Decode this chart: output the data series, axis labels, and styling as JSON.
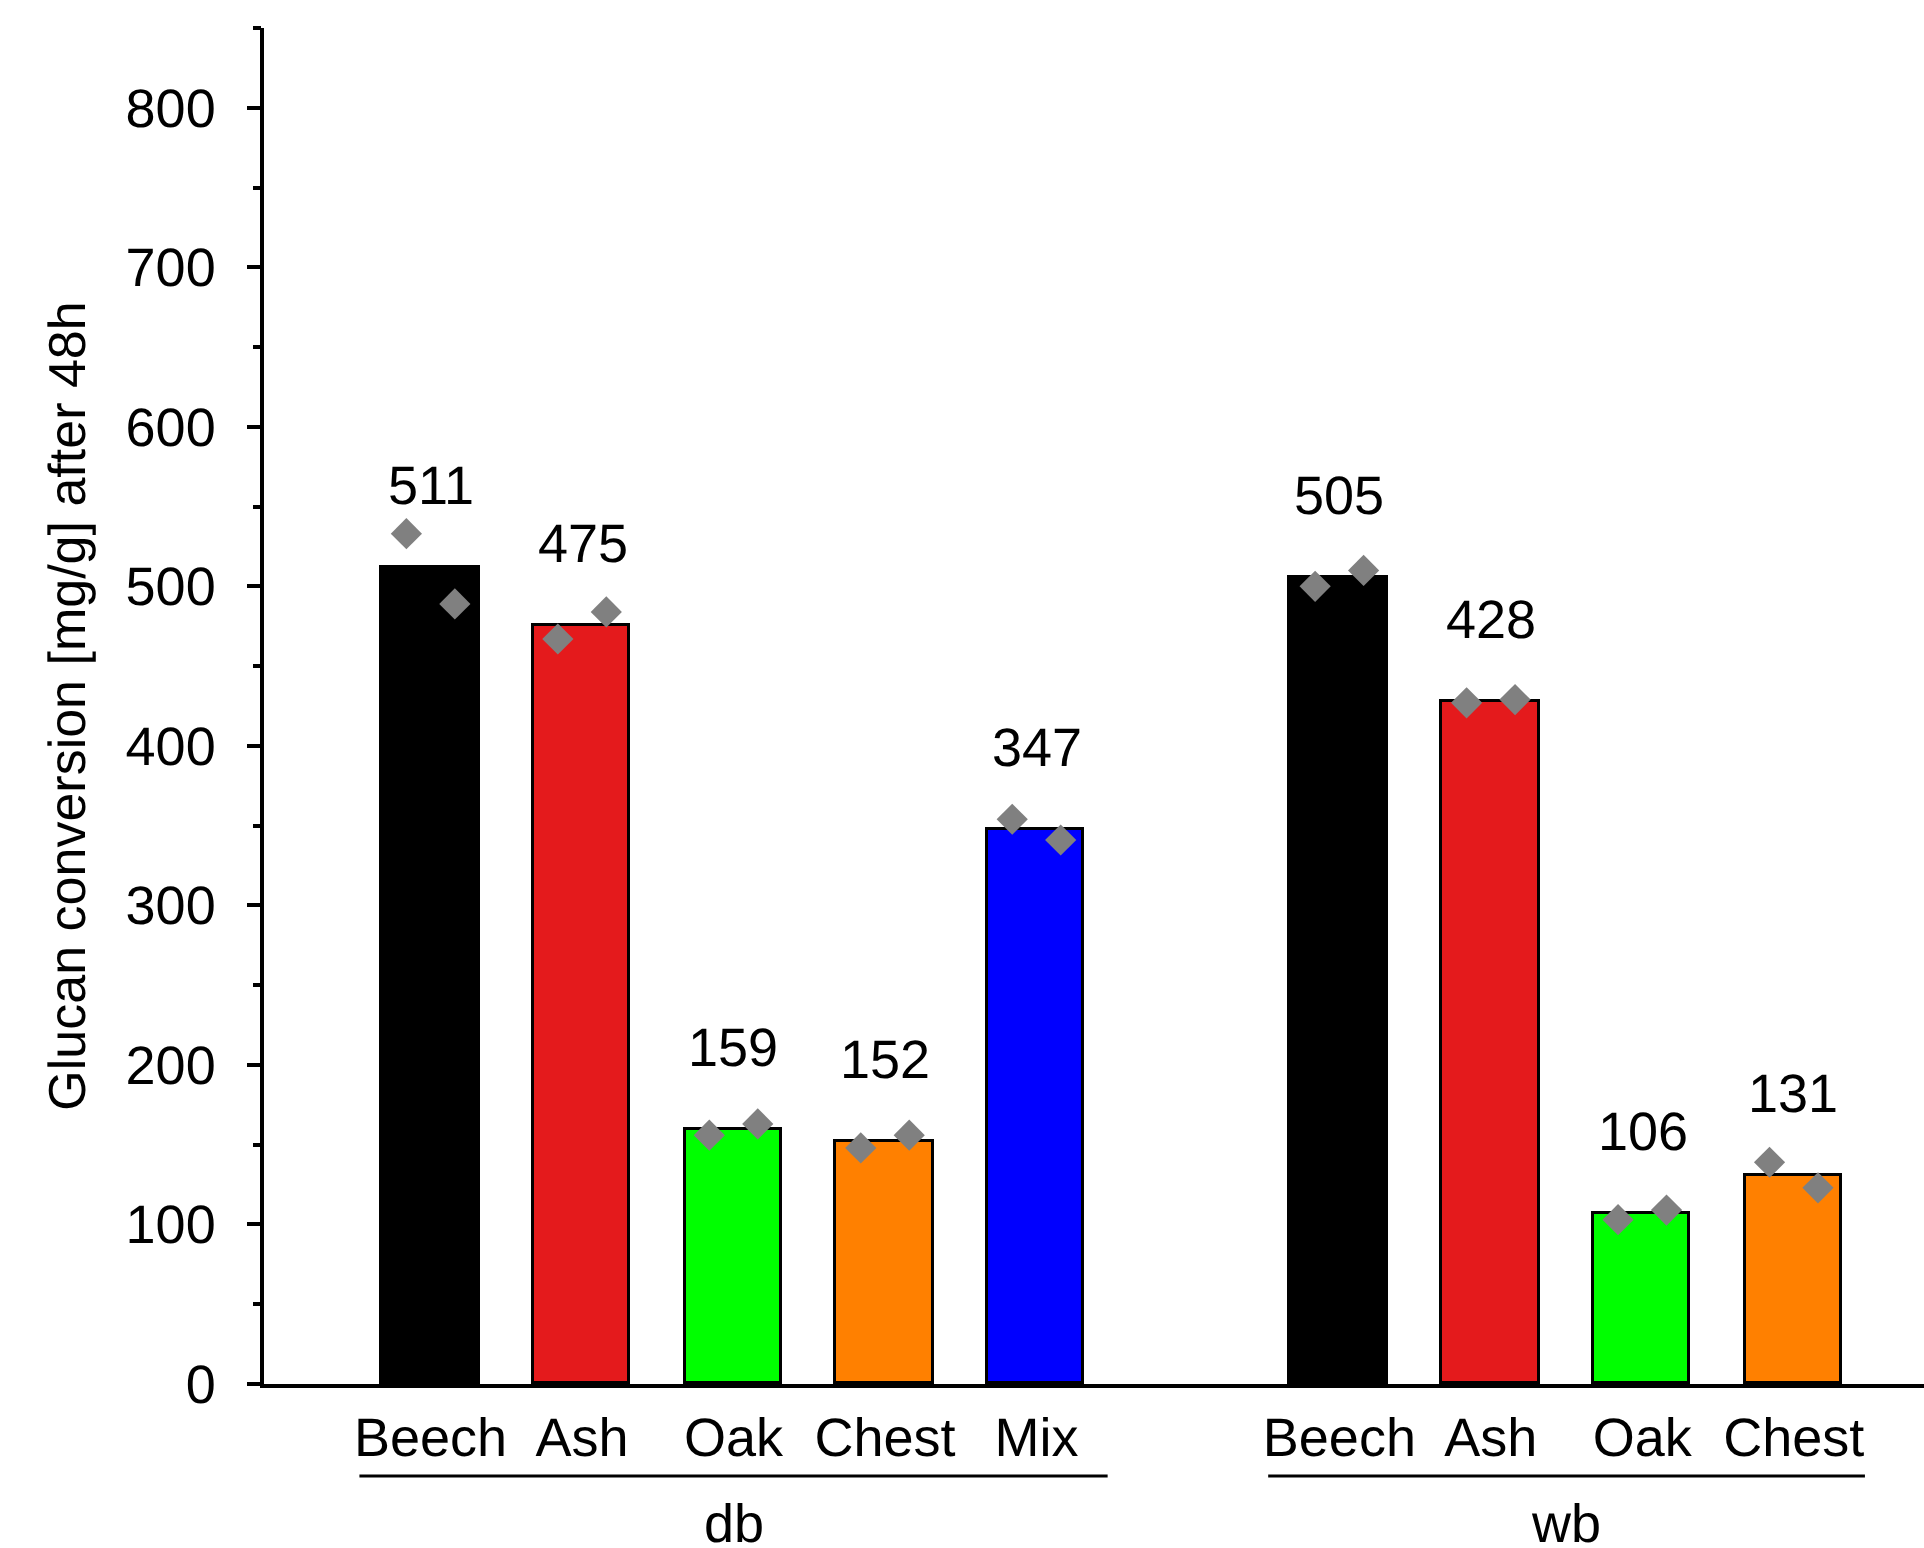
{
  "chart_data": {
    "type": "bar",
    "ylabel": "Glucan conversion [mg/g] after 48h",
    "categories": [
      "Beech",
      "Ash",
      "Oak",
      "Chest",
      "Mix",
      null,
      "Beech",
      "Ash",
      "Oak",
      "Chest"
    ],
    "series": [
      {
        "colors": [
          "#000000",
          "#e41a1c",
          "#00ff00",
          "#ff8000",
          "#0000ff",
          null,
          "#000000",
          "#e41a1c",
          "#00ff00",
          "#ff8000"
        ],
        "values": [
          511,
          475,
          159,
          152,
          347,
          null,
          505,
          428,
          106,
          131
        ],
        "value_labels": [
          "511",
          "475",
          "159",
          "152",
          "347",
          null,
          "505",
          "428",
          "106",
          "131"
        ]
      },
      {
        "type": "scatter",
        "color": "#808080",
        "values": [
          533,
          467,
          156,
          148,
          354,
          null,
          500,
          427,
          103,
          139
        ]
      },
      {
        "type": "scatter",
        "color": "#808080",
        "values": [
          489,
          484,
          163,
          156,
          341,
          null,
          510,
          429,
          109,
          123
        ]
      }
    ],
    "marker": "diamond",
    "ylim": [
      0,
      850
    ],
    "yticks": [
      0,
      {
        "value": 50,
        "label": null
      },
      100,
      {
        "value": 150,
        "label": null
      },
      200,
      {
        "value": 250,
        "label": null
      },
      300,
      {
        "value": 350,
        "label": null
      },
      400,
      {
        "value": 450,
        "label": null
      },
      500,
      {
        "value": 550,
        "label": null
      },
      600,
      {
        "value": 650,
        "label": null
      },
      700,
      {
        "value": 750,
        "label": null
      },
      800,
      {
        "value": 850,
        "label": null
      }
    ],
    "annotations": [
      "db",
      "wb"
    ]
  }
}
